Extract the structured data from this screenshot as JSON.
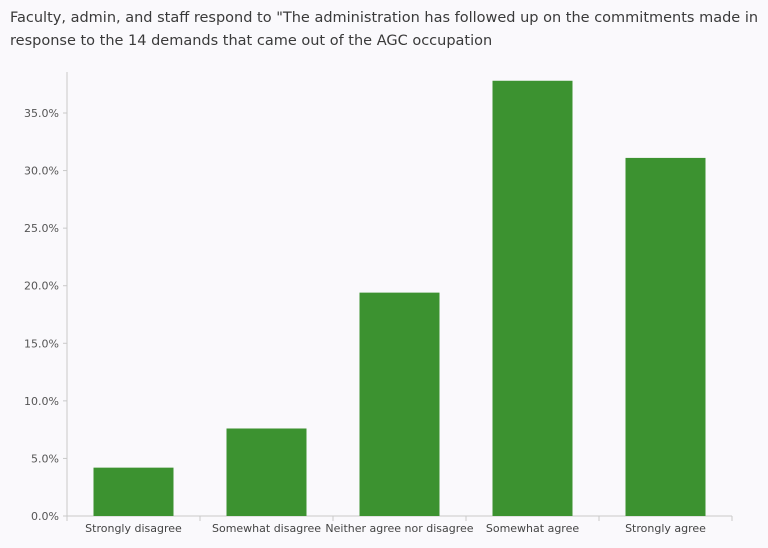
{
  "title": "Faculty, admin, and staff respond to \"The administration has followed up on the commitments made in response to the 14 demands that came out of the AGC occupation",
  "colors": {
    "bar": "#3c9230",
    "axis": "#c9c9c9",
    "background": "#faf9fc"
  },
  "chart_data": {
    "type": "bar",
    "title": "Faculty, admin, and staff respond to \"The administration has followed up on the commitments made in response to the 14 demands that came out of the AGC occupation",
    "categories": [
      "Strongly disagree",
      "Somewhat disagree",
      "Neither agree nor disagree",
      "Somewhat agree",
      "Strongly agree"
    ],
    "values": [
      4.2,
      7.6,
      19.4,
      37.8,
      31.1
    ],
    "unit": "%",
    "ylim": [
      0,
      39
    ],
    "yticks": [
      "0.0%",
      "5.0%",
      "10.0%",
      "15.0%",
      "20.0%",
      "25.0%",
      "30.0%",
      "35.0%"
    ],
    "grid": false,
    "xlabel": "",
    "ylabel": ""
  }
}
